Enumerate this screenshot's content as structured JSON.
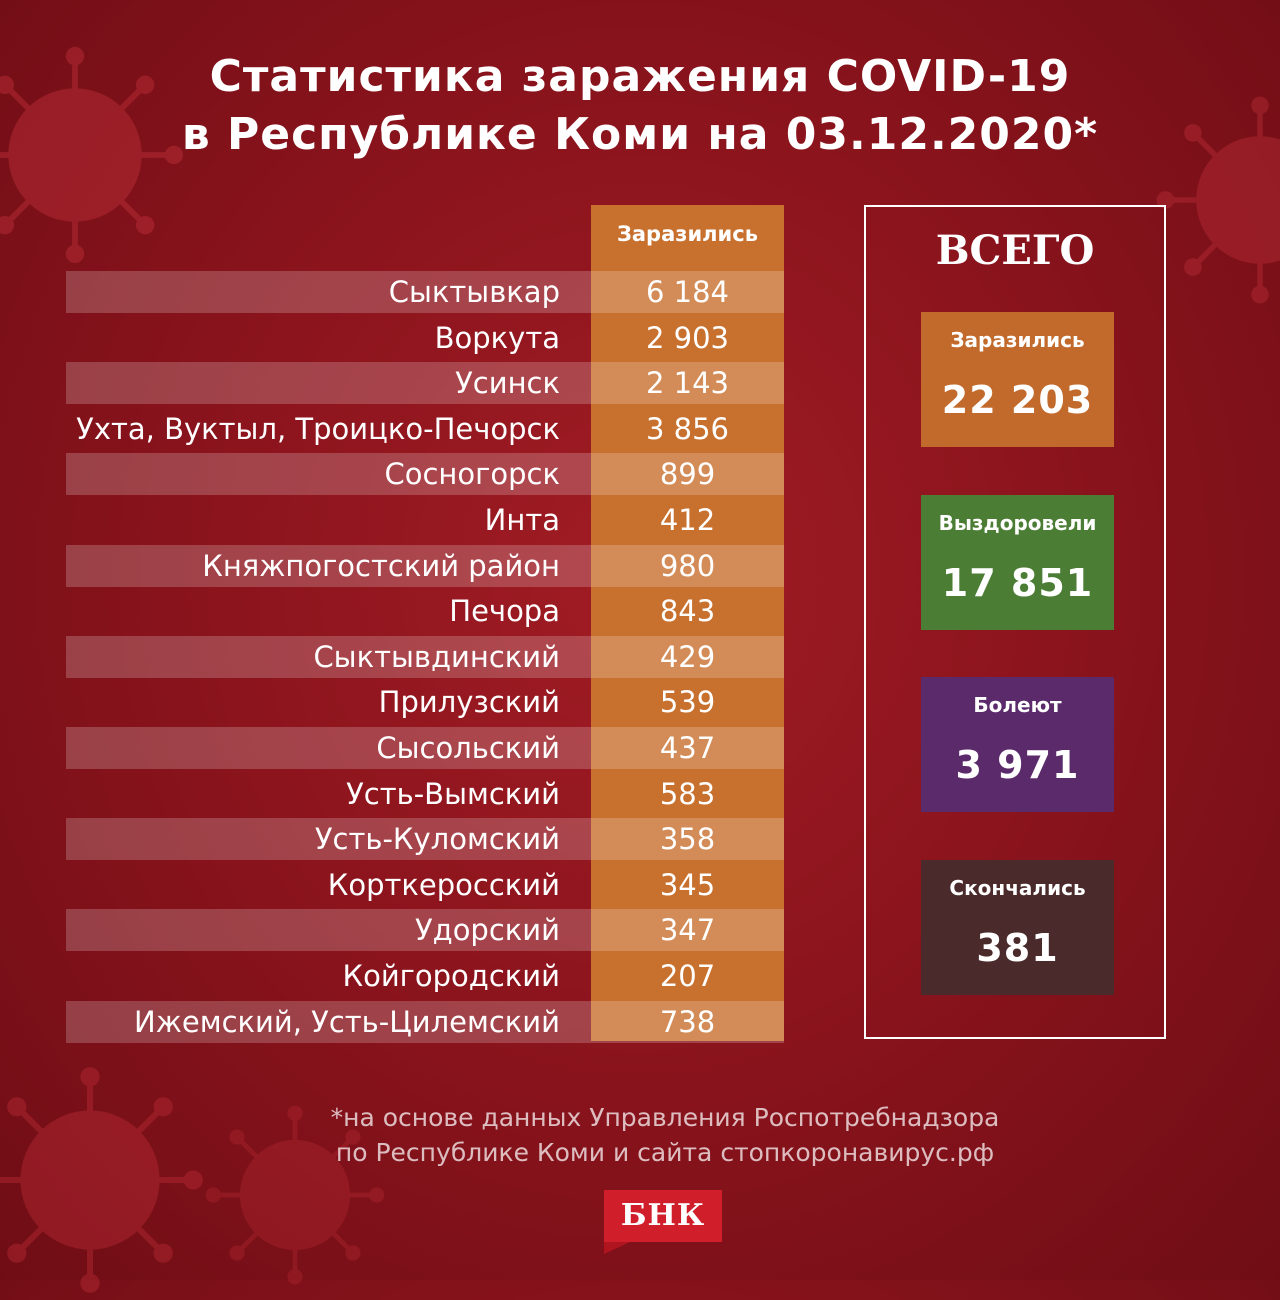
{
  "title_line1": "Статистика заражения COVID-19",
  "title_line2": "в Республике Коми на 03.12.2020*",
  "table": {
    "column_header": "Заразились",
    "rows": [
      {
        "label": "Сыктывкар",
        "value": "6 184"
      },
      {
        "label": "Воркута",
        "value": "2 903"
      },
      {
        "label": "Усинск",
        "value": "2 143"
      },
      {
        "label": "Ухта, Вуктыл, Троицко-Печорск",
        "value": "3 856"
      },
      {
        "label": "Сосногорск",
        "value": "899"
      },
      {
        "label": "Инта",
        "value": "412"
      },
      {
        "label": "Княжпогостский район",
        "value": "980"
      },
      {
        "label": "Печора",
        "value": "843"
      },
      {
        "label": "Сыктывдинский",
        "value": "429"
      },
      {
        "label": "Прилузский",
        "value": "539"
      },
      {
        "label": "Сысольский",
        "value": "437"
      },
      {
        "label": "Усть-Вымский",
        "value": "583"
      },
      {
        "label": "Усть-Куломский",
        "value": "358"
      },
      {
        "label": "Корткеросский",
        "value": "345"
      },
      {
        "label": "Удорский",
        "value": "347"
      },
      {
        "label": "Койгородский",
        "value": "207"
      },
      {
        "label": "Ижемский, Усть-Цилемский",
        "value": "738"
      }
    ]
  },
  "totals": {
    "title": "ВСЕГО",
    "items": [
      {
        "label": "Заразились",
        "value": "22 203",
        "color": "#c26a2c"
      },
      {
        "label": "Выздоровели",
        "value": "17 851",
        "color": "#4c7d35"
      },
      {
        "label": "Болеют",
        "value": "3 971",
        "color": "#5b2a6b"
      },
      {
        "label": "Скончались",
        "value": "381",
        "color": "#4a2a2a"
      }
    ]
  },
  "footnote_line1": "*на основе данных Управления Роспотребнадзора",
  "footnote_line2": "по Республике Коми и сайта стопкоронавирус.рф",
  "logo_text": "БНК",
  "colors": {
    "background": "#8c141d",
    "column_accent": "#c8702e",
    "logo_red": "#d01f2b"
  }
}
